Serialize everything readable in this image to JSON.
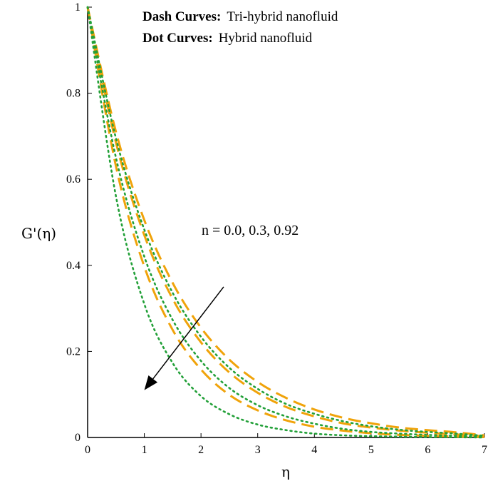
{
  "chart_data": {
    "type": "line",
    "xlabel": "η",
    "ylabel": "G'(η)",
    "xlim": [
      0,
      7
    ],
    "ylim": [
      0,
      1
    ],
    "xticks": [
      0,
      1,
      2,
      3,
      4,
      5,
      6,
      7
    ],
    "yticks": [
      0,
      0.2,
      0.4,
      0.6,
      0.8,
      1
    ],
    "ytick_labels": [
      "0",
      "0.2",
      "0.4",
      "0.6",
      "0.8",
      "1"
    ],
    "grid": false,
    "legend": {
      "dash_label": "Dash Curves:",
      "dash_text": "Tri-hybrid nanofluid",
      "dot_label": "Dot Curves:",
      "dot_text": "Hybrid nanofluid"
    },
    "annotation": {
      "text": "n = 0.0, 0.3, 0.92",
      "arrow_from": [
        2.4,
        0.35
      ],
      "arrow_to": [
        1.0,
        0.11
      ]
    },
    "colors": {
      "dash": "#f0a30a",
      "dot": "#22a038"
    },
    "x": [
      0,
      0.5,
      1,
      1.5,
      2,
      2.5,
      3,
      3.5,
      4,
      4.5,
      5,
      5.5,
      6,
      6.5,
      7
    ],
    "series": [
      {
        "group": "dash",
        "n": "0.0",
        "values": [
          1,
          0.71,
          0.505,
          0.359,
          0.255,
          0.181,
          0.129,
          0.092,
          0.065,
          0.046,
          0.033,
          0.023,
          0.017,
          0.012,
          0.005
        ]
      },
      {
        "group": "dash",
        "n": "0.3",
        "values": [
          1,
          0.685,
          0.47,
          0.322,
          0.221,
          0.151,
          0.104,
          0.071,
          0.049,
          0.033,
          0.023,
          0.016,
          0.011,
          0.007,
          0.003
        ]
      },
      {
        "group": "dash",
        "n": "0.92",
        "values": [
          1,
          0.63,
          0.397,
          0.25,
          0.158,
          0.099,
          0.063,
          0.04,
          0.025,
          0.016,
          0.01,
          0.006,
          0.004,
          0.002,
          0.001
        ]
      },
      {
        "group": "dot",
        "n": "0.0",
        "values": [
          1,
          0.695,
          0.483,
          0.336,
          0.234,
          0.162,
          0.113,
          0.078,
          0.055,
          0.038,
          0.026,
          0.018,
          0.013,
          0.009,
          0.004
        ]
      },
      {
        "group": "dot",
        "n": "0.3",
        "values": [
          1,
          0.65,
          0.42,
          0.273,
          0.178,
          0.115,
          0.075,
          0.049,
          0.032,
          0.02,
          0.013,
          0.009,
          0.006,
          0.004,
          0.002
        ]
      },
      {
        "group": "dot",
        "n": "0.92",
        "values": [
          1,
          0.56,
          0.31,
          0.173,
          0.096,
          0.054,
          0.03,
          0.017,
          0.009,
          0.005,
          0.003,
          0.002,
          0.001,
          0.0005,
          0
        ]
      }
    ]
  }
}
